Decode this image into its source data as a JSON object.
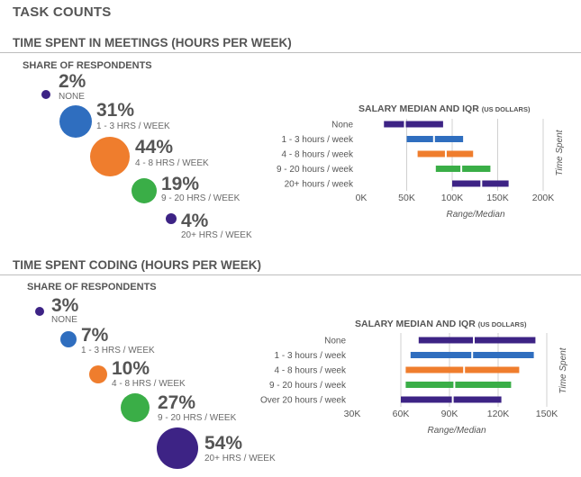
{
  "page_title": "TASK COUNTS",
  "colors": {
    "purple": "#3d2385",
    "blue": "#2f6ebf",
    "orange": "#ef7d2d",
    "green": "#3aae47"
  },
  "share_title": "SHARE OF RESPONDENTS",
  "meetings": {
    "title": "TIME SPENT IN MEETINGS (HOURS PER WEEK)",
    "share": [
      {
        "pct": "2%",
        "label": "NONE",
        "color": "purple"
      },
      {
        "pct": "31%",
        "label": "1 - 3 HRS / WEEK",
        "color": "blue"
      },
      {
        "pct": "44%",
        "label": "4 - 8 HRS / WEEK",
        "color": "orange"
      },
      {
        "pct": "19%",
        "label": "9 - 20 HRS / WEEK",
        "color": "green"
      },
      {
        "pct": "4%",
        "label": "20+ HRS / WEEK",
        "color": "purple"
      }
    ]
  },
  "coding": {
    "title": "TIME SPENT CODING (HOURS PER WEEK)",
    "share": [
      {
        "pct": "3%",
        "label": "NONE",
        "color": "purple"
      },
      {
        "pct": "7%",
        "label": "1 - 3 HRS / WEEK",
        "color": "blue"
      },
      {
        "pct": "10%",
        "label": "4 - 8 HRS / WEEK",
        "color": "orange"
      },
      {
        "pct": "27%",
        "label": "9 - 20 HRS / WEEK",
        "color": "green"
      },
      {
        "pct": "54%",
        "label": "20+ HRS / WEEK",
        "color": "purple"
      }
    ]
  },
  "chart_data": [
    {
      "type": "range",
      "title": "SALARY MEDIAN AND IQR",
      "title_unit": "(US DOLLARS)",
      "categories": [
        "None",
        "1 - 3 hours / week",
        "4 - 8 hours / week",
        "9 - 20 hours / week",
        "20+ hours / week"
      ],
      "colors": [
        "purple",
        "blue",
        "orange",
        "green",
        "purple"
      ],
      "q1": [
        25000,
        50000,
        62000,
        82000,
        100000
      ],
      "median": [
        48000,
        80000,
        93000,
        110000,
        132000
      ],
      "q3": [
        90000,
        112000,
        123000,
        142000,
        162000
      ],
      "xlim": [
        0,
        200000
      ],
      "ticks": [
        "0K",
        "50K",
        "100K",
        "150K",
        "200K"
      ],
      "xlabel": "Range/Median",
      "ylabel": "Time Spent"
    },
    {
      "type": "range",
      "title": "SALARY MEDIAN AND IQR",
      "title_unit": "(US DOLLARS)",
      "categories": [
        "None",
        "1 - 3 hours / week",
        "4 - 8 hours / week",
        "9 - 20 hours / week",
        "Over 20 hours / week"
      ],
      "colors": [
        "purple",
        "blue",
        "orange",
        "green",
        "purple"
      ],
      "q1": [
        71000,
        66000,
        63000,
        63000,
        60000
      ],
      "median": [
        105000,
        104000,
        99000,
        93000,
        92000
      ],
      "q3": [
        143000,
        142000,
        133000,
        128000,
        122000
      ],
      "xlim": [
        30000,
        150000
      ],
      "ticks": [
        "30K",
        "60K",
        "90K",
        "120K",
        "150K"
      ],
      "xlabel": "Range/Median",
      "ylabel": "Time Spent"
    }
  ]
}
